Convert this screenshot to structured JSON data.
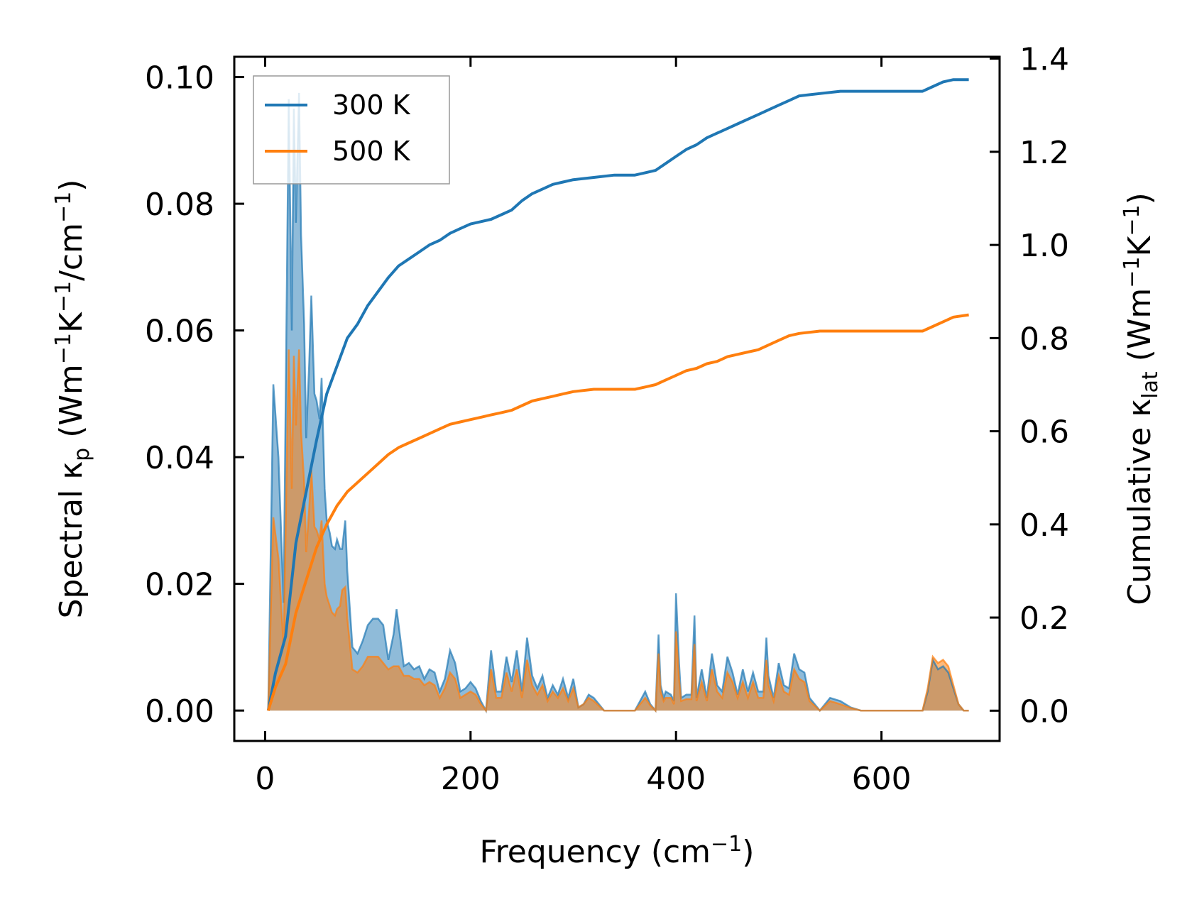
{
  "chart_data": {
    "type": "line",
    "xlabel": "Frequency (cm",
    "xlabel_sup": "−1",
    "xlabel_tail": ")",
    "ylabel_left": {
      "prefix": "Spectral κ",
      "sub": "p",
      "units_a": " (Wm",
      "sup1": "−1",
      "units_b": "K",
      "sup2": "−1",
      "units_c": "/cm",
      "sup3": "−1",
      "units_d": ")"
    },
    "ylabel_right": {
      "prefix": "Cumulative κ",
      "sub": "lat",
      "units_a": " (Wm",
      "sup1": "−1",
      "units_b": "K",
      "sup2": "−1",
      "units_c": ")"
    },
    "xlim": [
      -30,
      715
    ],
    "ylim_left": [
      -0.0048,
      0.1032
    ],
    "ylim_right": [
      -0.065,
      1.404
    ],
    "xticks": [
      0,
      200,
      400,
      600
    ],
    "xtick_labels": [
      "0",
      "200",
      "400",
      "600"
    ],
    "yticks_left": [
      0.0,
      0.02,
      0.04,
      0.06,
      0.08,
      0.1
    ],
    "yticks_left_labels": [
      "0.00",
      "0.02",
      "0.04",
      "0.06",
      "0.08",
      "0.10"
    ],
    "yticks_right": [
      0.0,
      0.2,
      0.4,
      0.6,
      0.8,
      1.0,
      1.2,
      1.4
    ],
    "yticks_right_labels": [
      "0.0",
      "0.2",
      "0.4",
      "0.6",
      "0.8",
      "1.0",
      "1.2",
      "1.4"
    ],
    "legend": {
      "position": "upper-left",
      "entries": [
        {
          "label": "300 K",
          "color": "#1f77b4"
        },
        {
          "label": "500 K",
          "color": "#ff7f0e"
        }
      ]
    },
    "spectral_series": [
      {
        "name": "300 K",
        "axis": "left",
        "color": "#1f77b4",
        "x": [
          3,
          8,
          13,
          18,
          23,
          26,
          28,
          30,
          33,
          35,
          38,
          40,
          43,
          45,
          48,
          50,
          53,
          55,
          58,
          60,
          63,
          65,
          68,
          70,
          73,
          75,
          78,
          80,
          85,
          90,
          95,
          100,
          105,
          110,
          115,
          120,
          125,
          128,
          130,
          135,
          140,
          145,
          150,
          155,
          160,
          165,
          170,
          175,
          180,
          185,
          190,
          195,
          200,
          205,
          210,
          215,
          220,
          225,
          230,
          235,
          240,
          245,
          250,
          255,
          260,
          265,
          270,
          275,
          280,
          285,
          290,
          295,
          300,
          305,
          310,
          315,
          320,
          330,
          340,
          350,
          360,
          365,
          370,
          375,
          380,
          383,
          385,
          388,
          390,
          395,
          398,
          400,
          403,
          405,
          410,
          415,
          418,
          420,
          425,
          430,
          435,
          440,
          445,
          450,
          455,
          460,
          465,
          470,
          475,
          480,
          485,
          488,
          490,
          495,
          500,
          505,
          510,
          515,
          520,
          525,
          530,
          540,
          550,
          560,
          570,
          580,
          600,
          620,
          640,
          645,
          650,
          655,
          660,
          665,
          670,
          675,
          680,
          685
        ],
        "y": [
          0.0,
          0.0515,
          0.04,
          0.017,
          0.0965,
          0.06,
          0.095,
          0.077,
          0.0975,
          0.075,
          0.061,
          0.043,
          0.055,
          0.0655,
          0.05,
          0.049,
          0.046,
          0.0525,
          0.035,
          0.03,
          0.028,
          0.026,
          0.0255,
          0.027,
          0.0255,
          0.0255,
          0.03,
          0.022,
          0.01,
          0.009,
          0.011,
          0.0135,
          0.0145,
          0.0145,
          0.0135,
          0.008,
          0.012,
          0.016,
          0.0135,
          0.007,
          0.0075,
          0.0065,
          0.007,
          0.005,
          0.0065,
          0.006,
          0.003,
          0.005,
          0.0095,
          0.0075,
          0.003,
          0.0035,
          0.0045,
          0.0035,
          0.0015,
          0.0,
          0.0095,
          0.003,
          0.003,
          0.0085,
          0.0045,
          0.0095,
          0.003,
          0.0115,
          0.0055,
          0.0035,
          0.0055,
          0.002,
          0.004,
          0.0025,
          0.005,
          0.002,
          0.005,
          0.0005,
          0.001,
          0.0025,
          0.002,
          0.0,
          0.0,
          0.0,
          0.0,
          0.0015,
          0.003,
          0.001,
          0.0,
          0.012,
          0.004,
          0.002,
          0.003,
          0.0025,
          0.0015,
          0.0185,
          0.0075,
          0.002,
          0.0025,
          0.0025,
          0.015,
          0.002,
          0.0065,
          0.002,
          0.009,
          0.004,
          0.003,
          0.0085,
          0.006,
          0.0025,
          0.0065,
          0.003,
          0.006,
          0.003,
          0.003,
          0.0115,
          0.0055,
          0.002,
          0.0075,
          0.004,
          0.0035,
          0.009,
          0.0065,
          0.006,
          0.002,
          0.0,
          0.002,
          0.0015,
          0.0005,
          0.0,
          0.0,
          0.0,
          0.0,
          0.003,
          0.008,
          0.0065,
          0.007,
          0.006,
          0.0035,
          0.001,
          0.0,
          0.0
        ]
      },
      {
        "name": "500 K",
        "axis": "left",
        "color": "#ff7f0e",
        "x": [
          3,
          8,
          13,
          18,
          23,
          26,
          28,
          30,
          33,
          35,
          38,
          40,
          43,
          45,
          48,
          50,
          53,
          55,
          58,
          60,
          63,
          65,
          68,
          70,
          73,
          75,
          78,
          80,
          85,
          90,
          95,
          100,
          105,
          110,
          115,
          120,
          125,
          128,
          130,
          135,
          140,
          145,
          150,
          155,
          160,
          165,
          170,
          175,
          180,
          185,
          190,
          195,
          200,
          205,
          210,
          215,
          220,
          225,
          230,
          235,
          240,
          245,
          250,
          255,
          260,
          265,
          270,
          275,
          280,
          285,
          290,
          295,
          300,
          305,
          310,
          315,
          320,
          330,
          340,
          350,
          360,
          365,
          370,
          375,
          380,
          383,
          385,
          388,
          390,
          395,
          398,
          400,
          403,
          405,
          410,
          415,
          418,
          420,
          425,
          430,
          435,
          440,
          445,
          450,
          455,
          460,
          465,
          470,
          475,
          480,
          485,
          488,
          490,
          495,
          500,
          505,
          510,
          515,
          520,
          525,
          530,
          540,
          550,
          560,
          570,
          580,
          600,
          620,
          640,
          645,
          650,
          655,
          660,
          665,
          670,
          675,
          680,
          685
        ],
        "y": [
          0.0,
          0.0305,
          0.024,
          0.01,
          0.057,
          0.035,
          0.056,
          0.045,
          0.057,
          0.044,
          0.036,
          0.025,
          0.032,
          0.038,
          0.029,
          0.0285,
          0.027,
          0.03,
          0.02,
          0.018,
          0.0165,
          0.0155,
          0.015,
          0.016,
          0.0165,
          0.019,
          0.0195,
          0.0145,
          0.0065,
          0.006,
          0.007,
          0.0085,
          0.0085,
          0.0085,
          0.0075,
          0.0065,
          0.007,
          0.007,
          0.007,
          0.0055,
          0.0055,
          0.005,
          0.005,
          0.004,
          0.0045,
          0.004,
          0.002,
          0.0035,
          0.006,
          0.005,
          0.002,
          0.0025,
          0.003,
          0.0025,
          0.001,
          0.0,
          0.0065,
          0.002,
          0.002,
          0.006,
          0.003,
          0.0065,
          0.002,
          0.008,
          0.004,
          0.0025,
          0.004,
          0.0015,
          0.003,
          0.002,
          0.0035,
          0.0015,
          0.0035,
          0.0005,
          0.001,
          0.002,
          0.0015,
          0.0,
          0.0,
          0.0,
          0.0,
          0.001,
          0.002,
          0.0008,
          0.0,
          0.009,
          0.003,
          0.0015,
          0.002,
          0.002,
          0.001,
          0.0125,
          0.005,
          0.0015,
          0.0018,
          0.0018,
          0.0105,
          0.0015,
          0.0045,
          0.0015,
          0.0065,
          0.003,
          0.002,
          0.006,
          0.0045,
          0.002,
          0.0045,
          0.002,
          0.0045,
          0.002,
          0.002,
          0.008,
          0.004,
          0.0015,
          0.0055,
          0.003,
          0.0025,
          0.0065,
          0.005,
          0.0045,
          0.0015,
          0.0,
          0.0015,
          0.001,
          0.0004,
          0.0,
          0.0,
          0.0,
          0.0,
          0.0035,
          0.0085,
          0.0075,
          0.008,
          0.007,
          0.004,
          0.001,
          0.0,
          0.0
        ]
      }
    ],
    "cumulative_series": [
      {
        "name": "300 K cumulative",
        "axis": "right",
        "color": "#1f77b4",
        "x": [
          3,
          10,
          20,
          30,
          40,
          50,
          60,
          70,
          80,
          90,
          100,
          110,
          120,
          130,
          140,
          150,
          160,
          170,
          180,
          190,
          200,
          210,
          220,
          230,
          240,
          250,
          260,
          270,
          280,
          290,
          300,
          320,
          340,
          360,
          370,
          380,
          390,
          400,
          410,
          420,
          430,
          440,
          450,
          460,
          470,
          480,
          490,
          500,
          510,
          520,
          540,
          560,
          580,
          600,
          620,
          640,
          650,
          660,
          670,
          685
        ],
        "y": [
          0.0,
          0.08,
          0.16,
          0.36,
          0.47,
          0.58,
          0.68,
          0.74,
          0.8,
          0.83,
          0.87,
          0.9,
          0.93,
          0.955,
          0.97,
          0.985,
          1.0,
          1.01,
          1.025,
          1.035,
          1.045,
          1.05,
          1.055,
          1.065,
          1.075,
          1.095,
          1.11,
          1.12,
          1.13,
          1.135,
          1.14,
          1.145,
          1.15,
          1.15,
          1.155,
          1.16,
          1.175,
          1.19,
          1.205,
          1.215,
          1.23,
          1.24,
          1.25,
          1.26,
          1.27,
          1.28,
          1.29,
          1.3,
          1.31,
          1.32,
          1.325,
          1.33,
          1.33,
          1.33,
          1.33,
          1.33,
          1.34,
          1.35,
          1.355,
          1.355
        ]
      },
      {
        "name": "500 K cumulative",
        "axis": "right",
        "color": "#ff7f0e",
        "x": [
          3,
          10,
          20,
          30,
          40,
          50,
          60,
          70,
          80,
          90,
          100,
          110,
          120,
          130,
          140,
          150,
          160,
          170,
          180,
          190,
          200,
          210,
          220,
          230,
          240,
          250,
          260,
          270,
          280,
          290,
          300,
          320,
          340,
          360,
          370,
          380,
          390,
          400,
          410,
          420,
          430,
          440,
          450,
          460,
          470,
          480,
          490,
          500,
          510,
          520,
          540,
          560,
          580,
          600,
          620,
          640,
          650,
          660,
          670,
          685
        ],
        "y": [
          0.0,
          0.05,
          0.1,
          0.21,
          0.28,
          0.35,
          0.4,
          0.44,
          0.47,
          0.49,
          0.51,
          0.53,
          0.55,
          0.565,
          0.575,
          0.585,
          0.595,
          0.605,
          0.615,
          0.62,
          0.625,
          0.63,
          0.635,
          0.64,
          0.645,
          0.655,
          0.665,
          0.67,
          0.675,
          0.68,
          0.685,
          0.69,
          0.69,
          0.69,
          0.695,
          0.7,
          0.71,
          0.72,
          0.73,
          0.735,
          0.745,
          0.75,
          0.76,
          0.765,
          0.77,
          0.775,
          0.785,
          0.795,
          0.805,
          0.81,
          0.815,
          0.815,
          0.815,
          0.815,
          0.815,
          0.815,
          0.825,
          0.835,
          0.845,
          0.85
        ]
      }
    ]
  }
}
